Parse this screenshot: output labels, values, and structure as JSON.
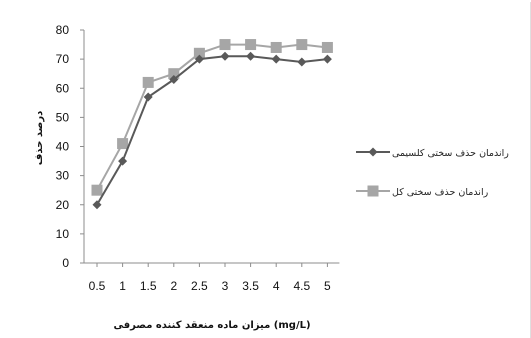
{
  "chart_data": {
    "type": "line",
    "title": "",
    "xlabel": "میزان ماده منعقد کننده مصرفی (mg/L)",
    "ylabel": "درصد حذف",
    "categories": [
      "0.5",
      "1",
      "1.5",
      "2",
      "2.5",
      "3",
      "3.5",
      "4",
      "4.5",
      "5"
    ],
    "ylim": [
      0,
      80
    ],
    "yticks": [
      0,
      10,
      20,
      30,
      40,
      50,
      60,
      70,
      80
    ],
    "grid": false,
    "legend_position": "right",
    "series": [
      {
        "name": "راندمان حذف سختی کلسیمی",
        "marker": "diamond",
        "color": "#595959",
        "values": [
          20,
          35,
          57,
          63,
          70,
          71,
          71,
          70,
          69,
          70
        ]
      },
      {
        "name": "راندمان حذف سختی کل",
        "marker": "square",
        "color": "#a6a6a6",
        "values": [
          25,
          41,
          62,
          65,
          72,
          75,
          75,
          74,
          75,
          74
        ]
      }
    ]
  }
}
